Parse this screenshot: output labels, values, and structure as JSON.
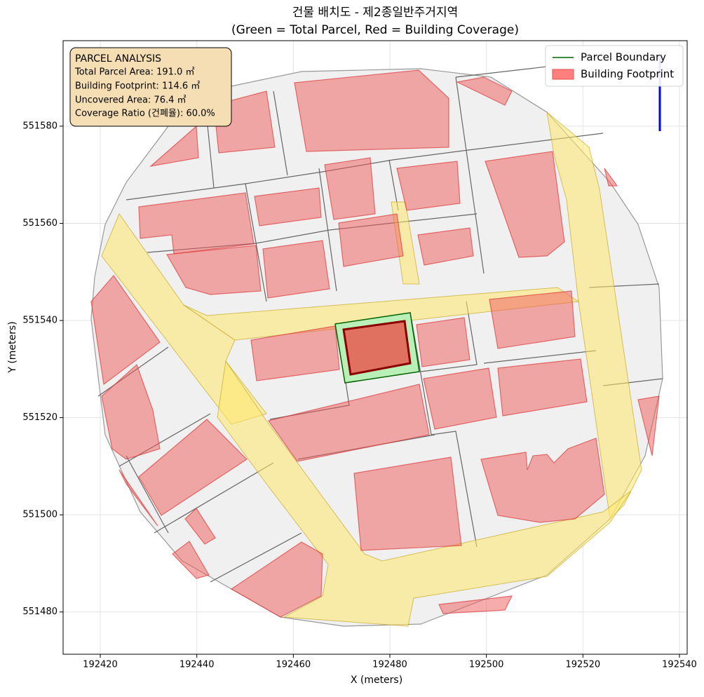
{
  "chart_data": {
    "type": "map",
    "title": "건물 배치도 - 제2종일반주거지역",
    "subtitle": "(Green = Total Parcel, Red = Building Coverage)",
    "x_label": "X (meters)",
    "y_label": "Y (meters)",
    "xlim": [
      192412.3,
      192541.6
    ],
    "ylim": [
      551471.3,
      551597.6
    ],
    "xticks": [
      192420,
      192440,
      192460,
      192480,
      192500,
      192520,
      192540
    ],
    "yticks": [
      551480,
      551500,
      551520,
      551540,
      551560,
      551580
    ],
    "grid": true,
    "legend_position": "upper right",
    "legend": [
      {
        "label": "Parcel Boundary",
        "color": "#006400"
      },
      {
        "label": "Building Footprint",
        "color": "#ff7f7f"
      }
    ],
    "annotation": {
      "title": "PARCEL ANALYSIS",
      "lines": [
        "Total Parcel Area: 191.0 ㎡",
        "Building Footprint: 114.6 ㎡",
        "Uncovered Area: 76.4 ㎡",
        "Coverage Ratio (건폐율): 60.0%"
      ]
    }
  }
}
